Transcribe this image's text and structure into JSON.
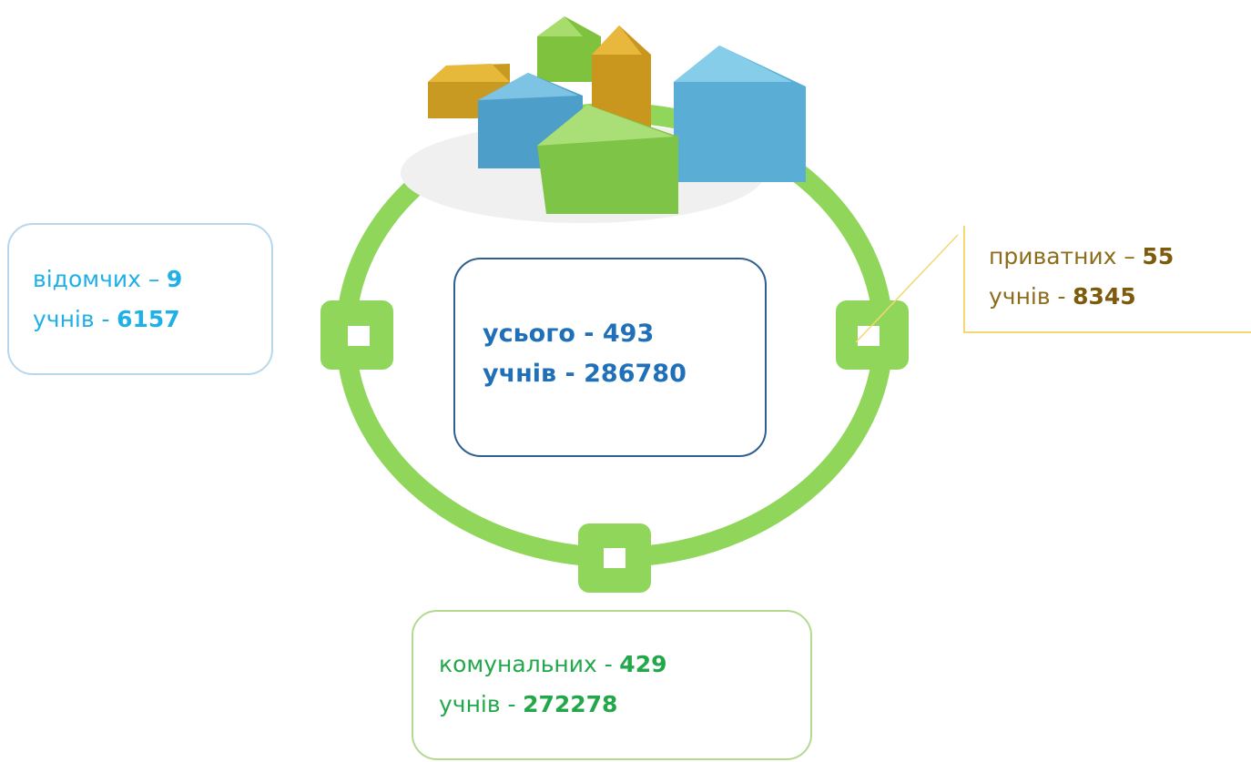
{
  "center": {
    "line1": "усього - 493",
    "line2": "учнів - 286780"
  },
  "left": {
    "label": "відомчих –",
    "count": "9",
    "pupils_label": "учнів -",
    "pupils": "6157"
  },
  "right": {
    "label": "приватних –",
    "count": "55",
    "pupils_label": "учнів -",
    "pupils": "8345"
  },
  "bottom": {
    "label": "комунальних -",
    "count": "429",
    "pupils_label": "учнів -",
    "pupils": "272278"
  }
}
